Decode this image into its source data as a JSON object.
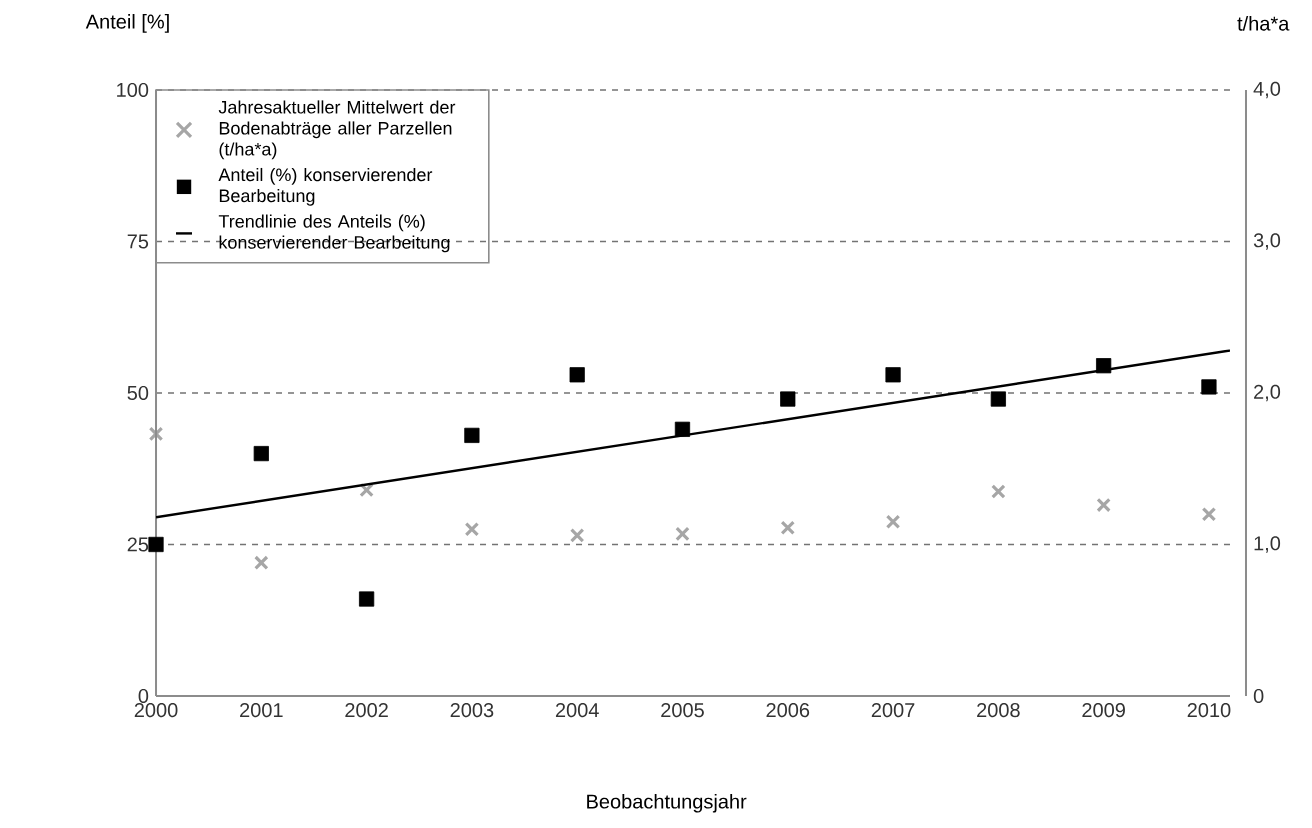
{
  "chart_data": {
    "type": "scatter",
    "xlabel": "Beobachtungsjahr",
    "ylabel": "Anteil [%]",
    "y2label": "t/ha*a",
    "xlim": [
      2000,
      2010.2
    ],
    "xticks": [
      2000,
      2001,
      2002,
      2003,
      2004,
      2005,
      2006,
      2007,
      2008,
      2009,
      2010
    ],
    "ylim": [
      0,
      100
    ],
    "yticks": [
      0,
      25,
      50,
      75,
      100
    ],
    "y2lim": [
      0,
      4
    ],
    "y2ticks": [
      0,
      {
        "value": 1,
        "label": "1,0"
      },
      {
        "value": 2,
        "label": "2,0"
      },
      {
        "value": 3,
        "label": "3,0"
      },
      {
        "value": 4,
        "label": "4,0"
      }
    ],
    "grid": "y",
    "legend": "top left",
    "series": [
      {
        "name": "Jahresaktueller Mittelwert der Bodenabträge aller Parzellen (t/ha*a)",
        "axis": "y2",
        "marker": "cross",
        "color": "#a6a6a6",
        "x": [
          2000,
          2001,
          2002,
          2003,
          2004,
          2005,
          2006,
          2007,
          2008,
          2009,
          2010
        ],
        "values": [
          1.73,
          0.88,
          1.36,
          1.1,
          1.06,
          1.07,
          1.11,
          1.15,
          1.35,
          1.26,
          1.2
        ]
      },
      {
        "name": "Anteil (%) konservierender Bearbeitung",
        "marker": "square",
        "color": "#000000",
        "x": [
          2000,
          2001,
          2002,
          2003,
          2004,
          2005,
          2006,
          2007,
          2008,
          2009,
          2010
        ],
        "values": [
          25,
          40,
          16,
          43,
          53,
          44,
          49,
          53,
          49,
          54.5,
          51
        ]
      },
      {
        "name": "Trendlinie des Anteils (%) konservierender Bearbeitung",
        "type": "line",
        "marker": "none",
        "line_style": "solid",
        "color": "#000000",
        "x": [
          2000,
          2010.2
        ],
        "values": [
          29.5,
          57
        ]
      }
    ]
  }
}
